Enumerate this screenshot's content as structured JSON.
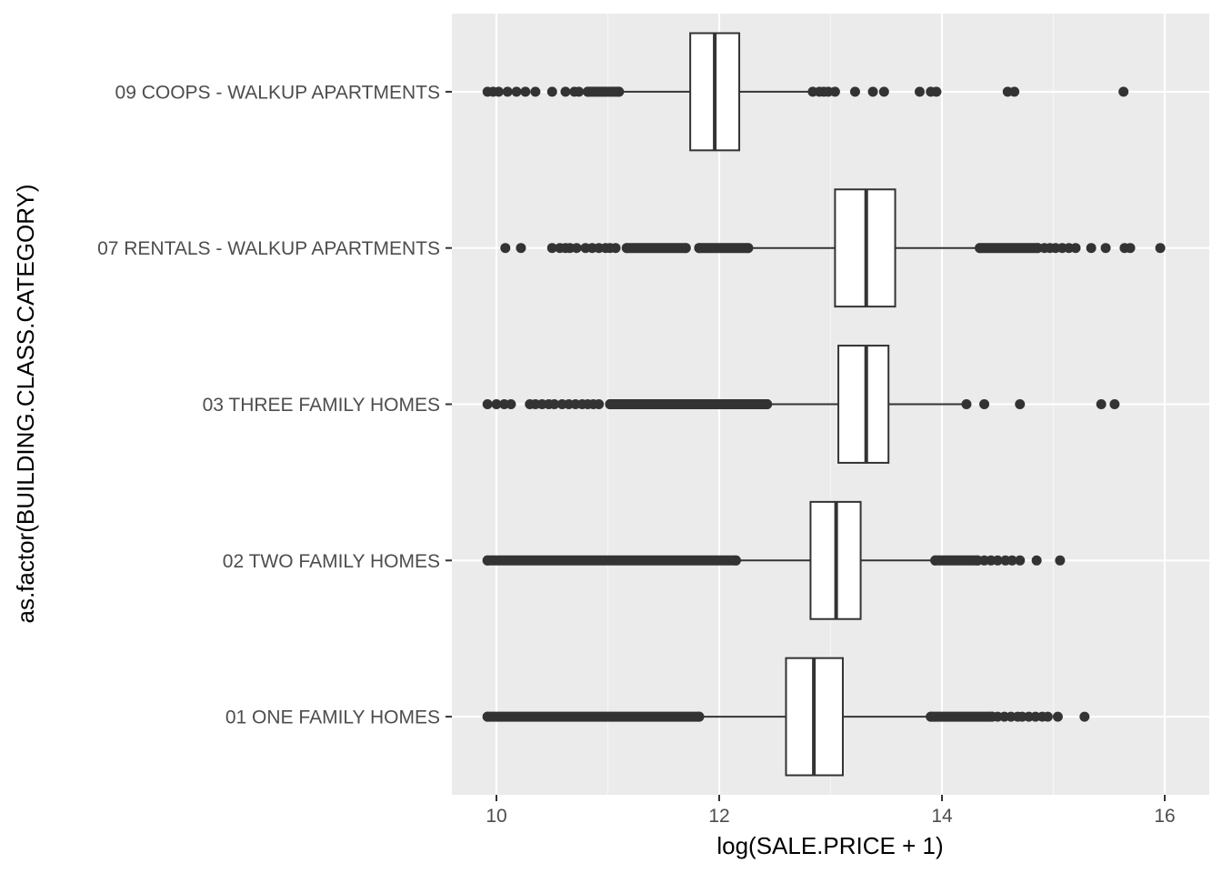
{
  "chart_data": {
    "type": "boxplot",
    "orientation": "horizontal",
    "xlabel": "log(SALE.PRICE + 1)",
    "ylabel": "as.factor(BUILDING.CLASS.CATEGORY)",
    "xlim": [
      9.6,
      16.4
    ],
    "x_ticks": [
      10,
      12,
      14,
      16
    ],
    "x_tick_labels": [
      "10",
      "12",
      "14",
      "16"
    ],
    "grid": true,
    "colors": {
      "panel": "#ebebeb",
      "grid_major": "#ffffff",
      "grid_minor": "#f5f5f5",
      "box_fill": "#ffffff",
      "box_stroke": "#333333",
      "outlier": "#333333",
      "tick_text": "#4d4d4d"
    },
    "categories": [
      "01  ONE FAMILY HOMES",
      "02  TWO FAMILY HOMES",
      "03  THREE FAMILY HOMES",
      "07  RENTALS - WALKUP APARTMENTS",
      "09  COOPS - WALKUP APARTMENTS"
    ],
    "boxes": [
      {
        "category": "01  ONE FAMILY HOMES",
        "whisker_low": 11.84,
        "q1": 12.6,
        "median": 12.85,
        "q3": 13.11,
        "whisker_high": 13.87,
        "outlier_bands": [
          [
            9.92,
            11.82
          ],
          [
            13.9,
            14.45
          ]
        ],
        "outliers": [
          9.92,
          11.82,
          13.9,
          14.45,
          14.5,
          14.56,
          14.62,
          14.68,
          14.72,
          14.78,
          14.84,
          14.9,
          14.95,
          15.04,
          15.28
        ]
      },
      {
        "category": "02  TWO FAMILY HOMES",
        "whisker_low": 12.17,
        "q1": 12.82,
        "median": 13.05,
        "q3": 13.27,
        "whisker_high": 13.92,
        "outlier_bands": [
          [
            9.92,
            12.15
          ],
          [
            13.94,
            14.32
          ]
        ],
        "outliers": [
          9.92,
          12.15,
          13.94,
          14.32,
          14.38,
          14.44,
          14.5,
          14.57,
          14.63,
          14.7,
          14.85,
          15.06
        ]
      },
      {
        "category": "03  THREE FAMILY HOMES",
        "whisker_low": 12.45,
        "q1": 13.07,
        "median": 13.32,
        "q3": 13.52,
        "whisker_high": 14.2,
        "outlier_bands": [
          [
            11.02,
            12.43
          ]
        ],
        "outliers": [
          9.92,
          10.0,
          10.07,
          10.13,
          10.3,
          10.35,
          10.41,
          10.47,
          10.52,
          10.59,
          10.65,
          10.71,
          10.77,
          10.82,
          10.87,
          10.92,
          11.02,
          12.43,
          14.22,
          14.38,
          14.7,
          15.43,
          15.55
        ]
      },
      {
        "category": "07  RENTALS - WALKUP APARTMENTS",
        "whisker_low": 12.28,
        "q1": 13.04,
        "median": 13.32,
        "q3": 13.58,
        "whisker_high": 14.32,
        "outlier_bands": [
          [
            11.17,
            11.7
          ],
          [
            11.82,
            12.26
          ],
          [
            14.34,
            14.86
          ]
        ],
        "outliers": [
          10.08,
          10.22,
          10.5,
          10.57,
          10.62,
          10.66,
          10.72,
          10.8,
          10.86,
          10.92,
          10.98,
          11.02,
          11.07,
          11.17,
          11.7,
          11.82,
          12.26,
          14.34,
          14.86,
          14.92,
          14.97,
          15.02,
          15.08,
          15.14,
          15.2,
          15.34,
          15.47,
          15.64,
          15.69,
          15.96
        ]
      },
      {
        "category": "09  COOPS - WALKUP APARTMENTS",
        "whisker_low": 11.12,
        "q1": 11.74,
        "median": 11.96,
        "q3": 12.18,
        "whisker_high": 12.8,
        "outlier_bands": [
          [
            10.82,
            11.1
          ]
        ],
        "outliers": [
          9.92,
          9.97,
          10.02,
          10.1,
          10.18,
          10.26,
          10.35,
          10.5,
          10.62,
          10.7,
          10.74,
          10.82,
          11.1,
          12.84,
          12.9,
          12.94,
          12.98,
          13.04,
          13.22,
          13.38,
          13.48,
          13.8,
          13.9,
          13.95,
          14.59,
          14.65,
          15.63
        ]
      }
    ]
  }
}
